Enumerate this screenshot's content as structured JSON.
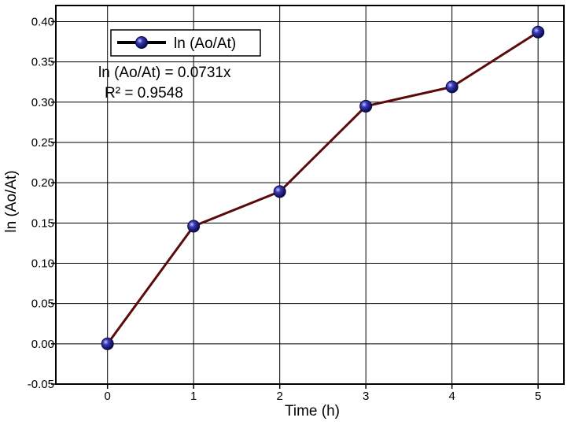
{
  "chart_data": {
    "type": "line",
    "xlabel": "Time (h)",
    "ylabel": "ln (Ao/At)",
    "xlim": [
      -0.6,
      5.3
    ],
    "ylim": [
      -0.05,
      0.42
    ],
    "x_ticks": [
      0,
      1,
      2,
      3,
      4,
      5
    ],
    "y_ticks": [
      -0.05,
      0.0,
      0.05,
      0.1,
      0.15,
      0.2,
      0.25,
      0.3,
      0.35,
      0.4
    ],
    "x_tick_labels": [
      "0",
      "1",
      "2",
      "3",
      "4",
      "5"
    ],
    "y_tick_labels": [
      "-0.05",
      "0.00",
      "0.05",
      "0.10",
      "0.15",
      "0.20",
      "0.25",
      "0.30",
      "0.35",
      "0.40"
    ],
    "grid": true,
    "legend_position": "top-left",
    "series": [
      {
        "name": "ln (Ao/At)",
        "x": [
          0,
          1,
          2,
          3,
          4,
          5
        ],
        "y": [
          0.0,
          0.146,
          0.189,
          0.295,
          0.319,
          0.387
        ],
        "line_color": "#5a0a0a",
        "marker_color": "#1c1c80"
      }
    ],
    "annotations": [
      "ln (Ao/At) = 0.0731x",
      "R² = 0.9548"
    ]
  }
}
